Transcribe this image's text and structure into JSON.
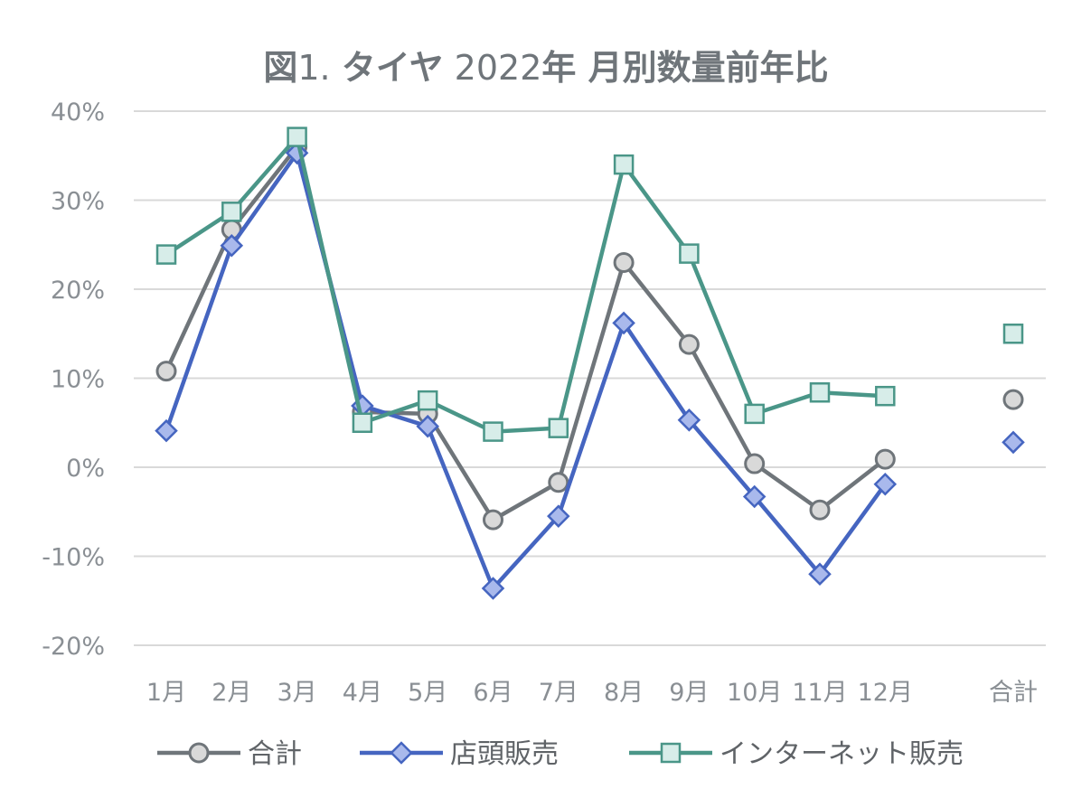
{
  "chart_data": {
    "type": "line",
    "title_parts": [
      {
        "text": "図",
        "bold": true
      },
      {
        "text": "1. ",
        "bold": false
      },
      {
        "text": "タイヤ",
        "bold": true
      },
      {
        "text": " 2022",
        "bold": false
      },
      {
        "text": "年 月別数量前年比",
        "bold": true
      }
    ],
    "categories": [
      "1月",
      "2月",
      "3月",
      "4月",
      "5月",
      "6月",
      "7月",
      "8月",
      "9月",
      "10月",
      "11月",
      "12月"
    ],
    "total_category": "合計",
    "ylim": [
      -20,
      40
    ],
    "yticks": [
      -20,
      -10,
      0,
      10,
      20,
      30,
      40
    ],
    "ytick_labels": [
      "-20%",
      "-10%",
      "0%",
      "10%",
      "20%",
      "30%",
      "40%"
    ],
    "grid": true,
    "legend_position": "bottom",
    "series": [
      {
        "name": "合計",
        "marker": "circle",
        "color": "#6f757a",
        "fill": "#d9d9d9",
        "values": [
          10.8,
          26.7,
          36.0,
          6.2,
          6.0,
          -5.9,
          -1.7,
          23.0,
          13.8,
          0.4,
          -4.8,
          0.9
        ],
        "total": 7.6
      },
      {
        "name": "店頭販売",
        "marker": "diamond",
        "color": "#4565c0",
        "fill": "#a9b9ec",
        "values": [
          4.1,
          24.9,
          35.3,
          6.9,
          4.6,
          -13.6,
          -5.5,
          16.2,
          5.3,
          -3.3,
          -12.0,
          -1.9
        ],
        "total": 2.8
      },
      {
        "name": "インターネット販売",
        "marker": "square",
        "color": "#4a9688",
        "fill": "#d7ede9",
        "values": [
          23.9,
          28.7,
          37.1,
          5.0,
          7.5,
          4.0,
          4.4,
          34.0,
          24.0,
          6.0,
          8.4,
          8.0
        ],
        "total": 15.0
      }
    ]
  }
}
